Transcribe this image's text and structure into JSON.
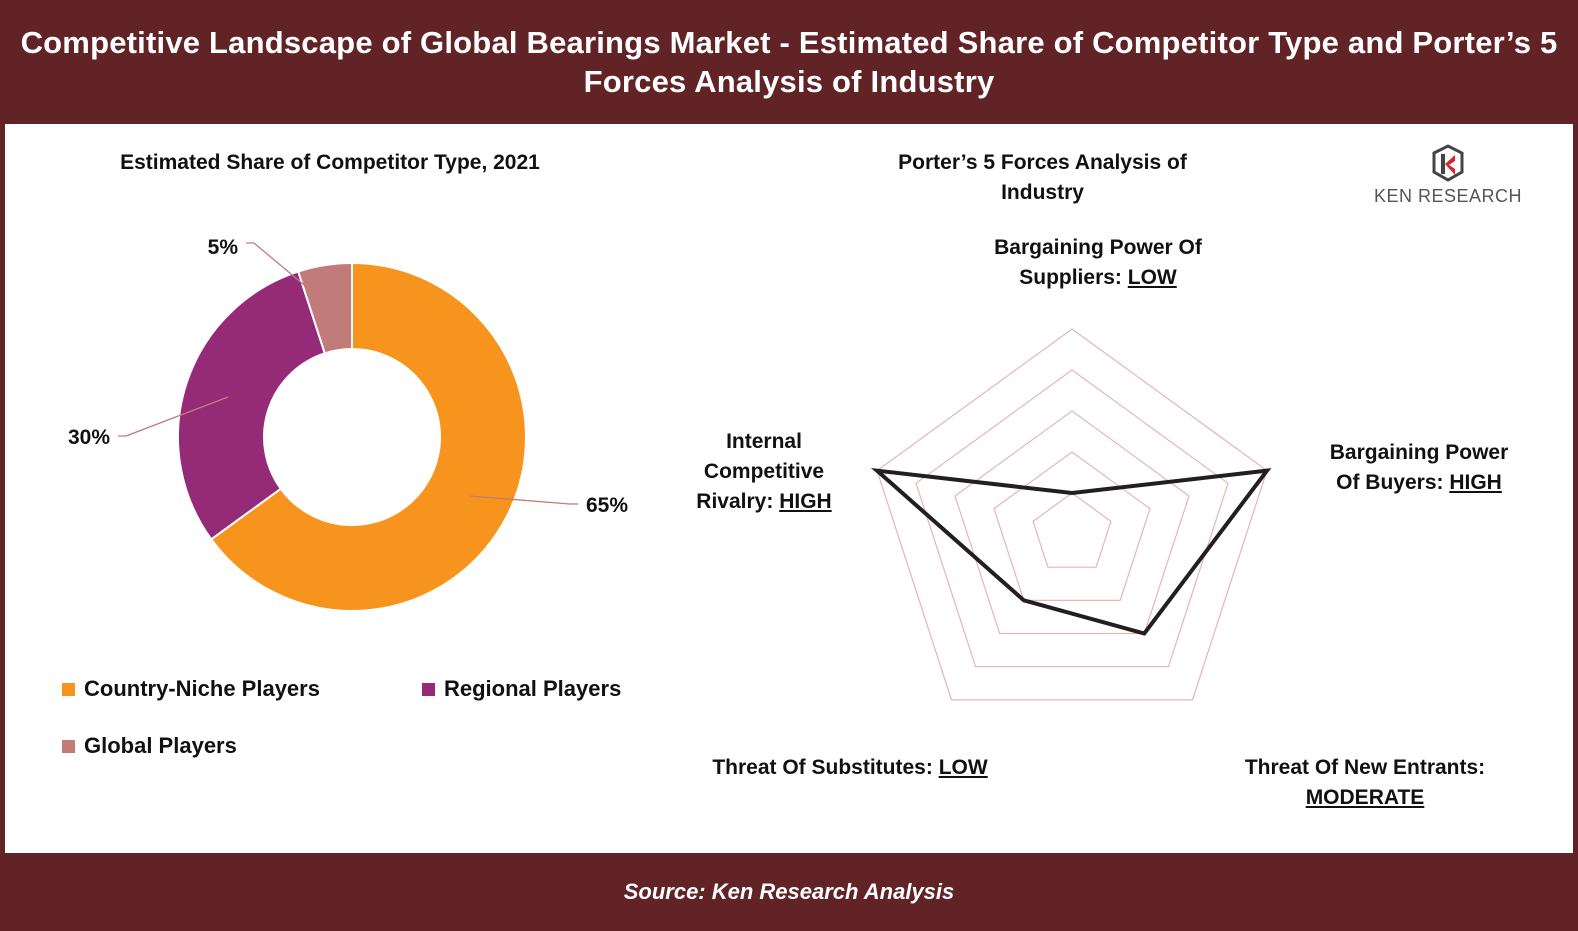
{
  "title": "Competitive Landscape of Global Bearings Market - Estimated Share of Competitor Type and Porter’s 5 Forces Analysis of Industry",
  "source": "Source: Ken Research Analysis",
  "logo_text": "KEN RESEARCH",
  "colors": {
    "banner": "#612325",
    "country_niche": "#F7941D",
    "regional": "#952A77",
    "global": "#C17C79",
    "radar_grid": "#E8B4B4",
    "radar_line": "#231F20"
  },
  "chart_data": [
    {
      "type": "pie",
      "title": "Estimated Share of Competitor Type, 2021",
      "categories": [
        "Country-Niche Players",
        "Regional Players",
        "Global Players"
      ],
      "values": [
        65,
        30,
        5
      ],
      "value_labels": [
        "65%",
        "30%",
        "5%"
      ],
      "donut": true,
      "legend": "bottom"
    },
    {
      "type": "radar",
      "title": "Porter’s 5 Forces Analysis of Industry",
      "axes": [
        {
          "name": "Bargaining Power Of Suppliers:",
          "rating": "LOW"
        },
        {
          "name": "Bargaining Power Of Buyers:",
          "rating": "HIGH"
        },
        {
          "name": "Threat Of New Entrants:",
          "rating": "MODERATE"
        },
        {
          "name": "Threat Of Substitutes:",
          "rating": "LOW"
        },
        {
          "name": "Internal Competitive Rivalry:",
          "rating": "HIGH"
        }
      ],
      "values": [
        1,
        5,
        3,
        2,
        5
      ],
      "scale_max": 5,
      "grid_levels": 5
    }
  ]
}
